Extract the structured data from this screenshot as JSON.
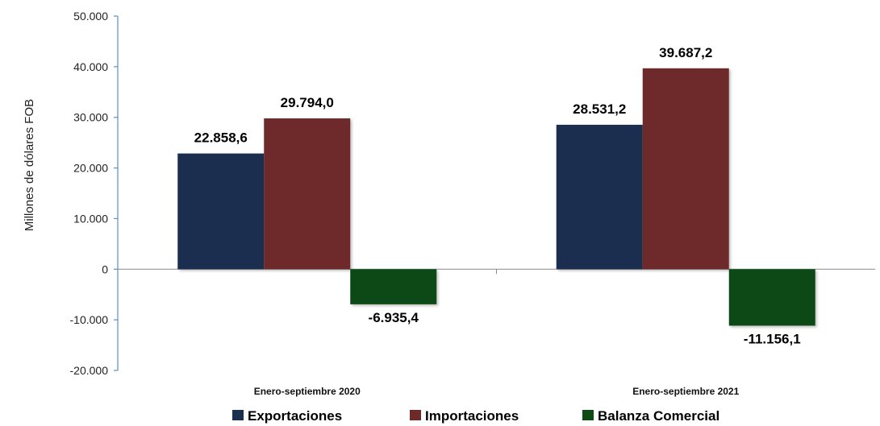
{
  "chart_data": {
    "type": "bar",
    "ylabel": "Millones de dólares FOB",
    "ylim": [
      -20000,
      50000
    ],
    "yticks": [
      50000,
      40000,
      30000,
      20000,
      10000,
      0,
      -10000,
      -20000
    ],
    "ytick_labels": [
      "50.000",
      "40.000",
      "30.000",
      "20.000",
      "10.000",
      "0",
      "-10.000",
      "-20.000"
    ],
    "categories": [
      "Enero-septiembre 2020",
      "Enero-septiembre 2021"
    ],
    "series": [
      {
        "name": "Exportaciones",
        "values": [
          22858.6,
          28531.2
        ],
        "labels": [
          "22.858,6",
          "28.531,2"
        ],
        "color": "#1b2f4f"
      },
      {
        "name": "Importaciones",
        "values": [
          29794.0,
          39687.2
        ],
        "labels": [
          "29.794,0",
          "39.687,2"
        ],
        "color": "#6e2a2b"
      },
      {
        "name": "Balanza Comercial",
        "values": [
          -6935.4,
          -11156.1
        ],
        "labels": [
          "-6.935,4",
          "-11.156,1"
        ],
        "color": "#0f4a14"
      }
    ],
    "legend_position": "bottom",
    "grid": false
  }
}
